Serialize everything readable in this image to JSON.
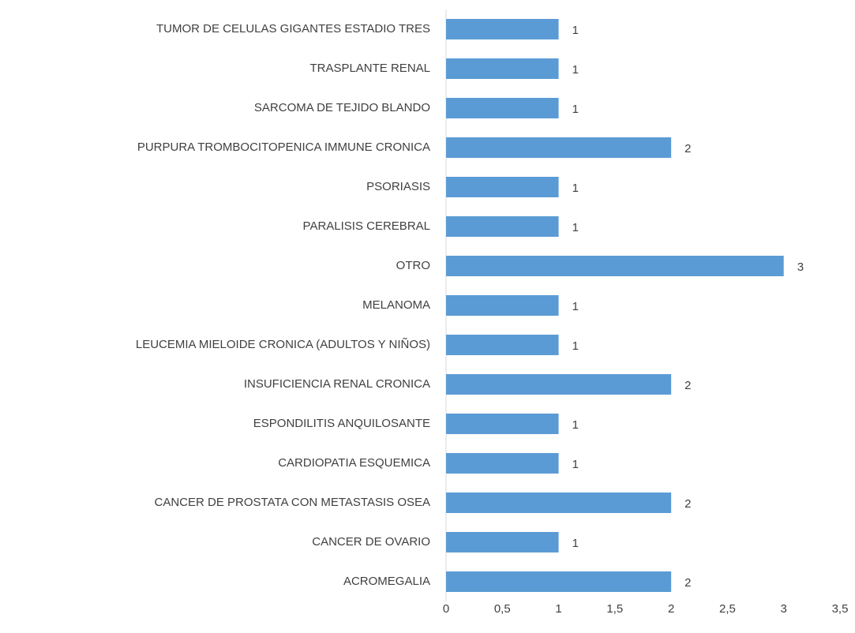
{
  "chart_data": {
    "type": "bar",
    "orientation": "horizontal",
    "categories": [
      "TUMOR DE CELULAS GIGANTES ESTADIO TRES",
      "TRASPLANTE RENAL",
      "SARCOMA DE TEJIDO BLANDO",
      "PURPURA TROMBOCITOPENICA IMMUNE CRONICA",
      "PSORIASIS",
      "PARALISIS CEREBRAL",
      "OTRO",
      "MELANOMA",
      "LEUCEMIA MIELOIDE CRONICA (ADULTOS Y NIÑOS)",
      "INSUFICIENCIA RENAL CRONICA",
      "ESPONDILITIS ANQUILOSANTE",
      "CARDIOPATIA ESQUEMICA",
      "CANCER DE PROSTATA CON METASTASIS OSEA",
      "CANCER DE OVARIO",
      "ACROMEGALIA"
    ],
    "values": [
      1,
      1,
      1,
      2,
      1,
      1,
      3,
      1,
      1,
      2,
      1,
      1,
      2,
      1,
      2
    ],
    "color": "#5b9bd5",
    "xlim": [
      0,
      3.5
    ],
    "xticks": [
      0,
      {
        "value": 0.5,
        "label": "0,5"
      },
      1,
      {
        "value": 1.5,
        "label": "1,5"
      },
      2,
      {
        "value": 2.5,
        "label": "2,5"
      },
      3,
      {
        "value": 3.5,
        "label": "3,5"
      }
    ],
    "grid": false
  }
}
